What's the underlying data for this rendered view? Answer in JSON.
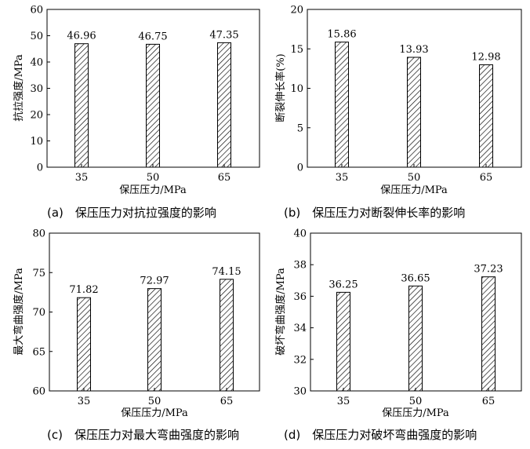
{
  "chart_data": [
    {
      "type": "bar",
      "caption": "(a)　保压压力对抗拉强度的影响",
      "categories": [
        "35",
        "50",
        "65"
      ],
      "values": [
        46.96,
        46.75,
        47.35
      ],
      "value_labels": [
        "46.96",
        "46.75",
        "47.35"
      ],
      "xlabel": "保压压力/MPa",
      "ylabel": "抗拉强度/MPa",
      "ylim": [
        0,
        60
      ],
      "yticks": [
        "0",
        "10",
        "20",
        "30",
        "40",
        "50",
        "60"
      ],
      "grid": false
    },
    {
      "type": "bar",
      "caption": "(b)　保压压力对断裂伸长率的影响",
      "categories": [
        "35",
        "50",
        "65"
      ],
      "values": [
        15.86,
        13.93,
        12.98
      ],
      "value_labels": [
        "15.86",
        "13.93",
        "12.98"
      ],
      "xlabel": "保压压力/MPa",
      "ylabel": "断裂伸长率(%)",
      "ylim": [
        0,
        20
      ],
      "yticks": [
        "0",
        "5",
        "10",
        "15",
        "20"
      ],
      "grid": false
    },
    {
      "type": "bar",
      "caption": "(c)　保压压力对最大弯曲强度的影响",
      "categories": [
        "35",
        "50",
        "65"
      ],
      "values": [
        71.82,
        72.97,
        74.15
      ],
      "value_labels": [
        "71.82",
        "72.97",
        "74.15"
      ],
      "xlabel": "保压压力/MPa",
      "ylabel": "最大弯曲强度/MPa",
      "ylim": [
        60,
        80
      ],
      "yticks": [
        "60",
        "65",
        "70",
        "75",
        "80"
      ],
      "grid": false
    },
    {
      "type": "bar",
      "caption": "(d)　保压压力对破坏弯曲强度的影响",
      "categories": [
        "35",
        "50",
        "65"
      ],
      "values": [
        36.25,
        36.65,
        37.23
      ],
      "value_labels": [
        "36.25",
        "36.65",
        "37.23"
      ],
      "xlabel": "保压压力/MPa",
      "ylabel": "破坏弯曲强度/MPa",
      "ylim": [
        30,
        40
      ],
      "yticks": [
        "30",
        "32",
        "34",
        "36",
        "38",
        "40"
      ],
      "grid": false
    }
  ]
}
